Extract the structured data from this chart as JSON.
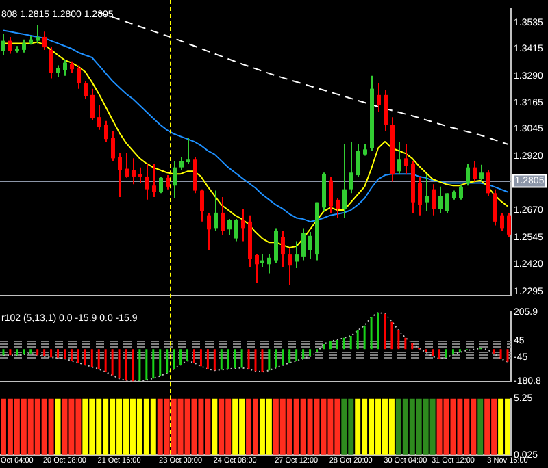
{
  "chart_data": [
    {
      "type": "candlestick",
      "title": "808 1.2815 1.2800 1.2805",
      "categories": [
        null,
        null,
        null,
        null,
        null,
        null,
        null,
        null,
        null,
        null,
        null,
        null,
        null,
        null,
        null,
        null,
        null,
        null,
        null,
        null,
        null,
        null,
        null,
        null,
        null,
        null,
        null,
        null,
        null,
        null,
        null,
        null,
        null,
        null,
        null,
        null,
        null,
        null,
        null,
        null,
        null,
        null,
        null,
        null,
        null,
        null,
        null,
        null,
        null,
        null,
        null,
        null,
        null,
        null,
        null,
        null,
        null,
        null,
        null,
        null,
        null,
        null,
        null,
        null,
        null,
        null,
        null,
        null,
        null,
        null,
        null,
        null,
        null,
        null,
        null
      ],
      "ohlc": [
        [
          1.3404,
          1.3482,
          1.3386,
          1.3452
        ],
        [
          1.3452,
          1.347,
          1.3392,
          1.3404
        ],
        [
          1.3404,
          1.3428,
          1.3398,
          1.3416
        ],
        [
          1.341,
          1.3458,
          1.3398,
          1.344
        ],
        [
          1.344,
          1.3476,
          1.3434,
          1.3458
        ],
        [
          1.3452,
          1.3524,
          1.344,
          1.347
        ],
        [
          1.347,
          1.3494,
          1.341,
          1.3422
        ],
        [
          1.341,
          1.3422,
          1.3279,
          1.3303
        ],
        [
          1.3303,
          1.3339,
          1.3285,
          1.3327
        ],
        [
          1.3315,
          1.3363,
          1.3291,
          1.3351
        ],
        [
          1.3345,
          1.3357,
          1.3303,
          1.3321
        ],
        [
          1.3327,
          1.3339,
          1.3231,
          1.3255
        ],
        [
          1.3255,
          1.3267,
          1.3184,
          1.3196
        ],
        [
          1.3202,
          1.3231,
          1.3088,
          1.3094
        ],
        [
          1.31,
          1.3154,
          1.3041,
          1.3053
        ],
        [
          1.3065,
          1.3082,
          1.2987,
          1.2999
        ],
        [
          1.3005,
          1.3035,
          1.2898,
          1.291
        ],
        [
          1.2916,
          1.2933,
          1.2731,
          1.2856
        ],
        [
          1.2862,
          1.2933,
          1.282,
          1.2826
        ],
        [
          1.2856,
          1.291,
          1.279,
          1.2826
        ],
        [
          1.2838,
          1.2868,
          1.2796,
          1.2826
        ],
        [
          1.2826,
          1.2886,
          1.2719,
          1.2767
        ],
        [
          1.2784,
          1.2886,
          1.2731,
          1.2755
        ],
        [
          1.2755,
          1.2826,
          1.2749,
          1.282
        ],
        [
          1.282,
          1.2832,
          1.2767,
          1.2779
        ],
        [
          1.2784,
          1.2898,
          1.2725,
          1.2868
        ],
        [
          1.2868,
          1.2916,
          1.2856,
          1.2898
        ],
        [
          1.2892,
          1.3005,
          1.2886,
          1.2904
        ],
        [
          1.2904,
          1.2916,
          1.2749,
          1.2761
        ],
        [
          1.2761,
          1.2767,
          1.2618,
          1.2665
        ],
        [
          1.2647,
          1.2659,
          1.2486,
          1.2582
        ],
        [
          1.2588,
          1.2761,
          1.2576,
          1.2659
        ],
        [
          1.2659,
          1.2731,
          1.2558,
          1.2576
        ],
        [
          1.2582,
          1.263,
          1.2558,
          1.2624
        ],
        [
          1.254,
          1.263,
          1.2528,
          1.2624
        ],
        [
          1.2624,
          1.2677,
          1.2528,
          1.2588
        ],
        [
          1.2618,
          1.2647,
          1.2409,
          1.2445
        ],
        [
          1.2463,
          1.2469,
          1.2337,
          1.2421
        ],
        [
          1.2427,
          1.2469,
          1.2409,
          1.2439
        ],
        [
          1.2421,
          1.2469,
          1.2379,
          1.2451
        ],
        [
          1.2439,
          1.2588,
          1.2427,
          1.2576
        ],
        [
          1.2546,
          1.2576,
          1.2409,
          1.2469
        ],
        [
          1.2469,
          1.2498,
          1.2326,
          1.2415
        ],
        [
          1.2433,
          1.2528,
          1.2403,
          1.2469
        ],
        [
          1.2457,
          1.2588,
          1.2439,
          1.2564
        ],
        [
          1.2486,
          1.257,
          1.2445,
          1.2552
        ],
        [
          1.2469,
          1.2707,
          1.2439,
          1.2707
        ],
        [
          1.2683,
          1.2844,
          1.2665,
          1.2838
        ],
        [
          1.2808,
          1.2826,
          1.2659,
          1.2689
        ],
        [
          1.2719,
          1.2725,
          1.2635,
          1.2677
        ],
        [
          1.2677,
          1.2975,
          1.2635,
          1.2767
        ],
        [
          1.2767,
          1.2987,
          1.2749,
          1.2844
        ],
        [
          1.2832,
          1.2975,
          1.2826,
          1.2945
        ],
        [
          1.2928,
          1.2975,
          1.2922,
          1.2951
        ],
        [
          1.2957,
          1.3291,
          1.2945,
          1.3231
        ],
        [
          1.3202,
          1.3255,
          1.3124,
          1.3154
        ],
        [
          1.3202,
          1.3226,
          1.3035,
          1.3065
        ],
        [
          1.3065,
          1.31,
          1.2802,
          1.2838
        ],
        [
          1.285,
          1.2987,
          1.2838,
          1.2904
        ],
        [
          1.291,
          1.2975,
          1.2838,
          1.2874
        ],
        [
          1.2886,
          1.2898,
          1.2659,
          1.2707
        ],
        [
          1.2796,
          1.2826,
          1.2647,
          1.2695
        ],
        [
          1.2707,
          1.2838,
          1.2665,
          1.2737
        ],
        [
          1.2767,
          1.279,
          1.2647,
          1.2677
        ],
        [
          1.2677,
          1.2779,
          1.2659,
          1.2737
        ],
        [
          1.2665,
          1.2749,
          1.2659,
          1.2749
        ],
        [
          1.2725,
          1.2761,
          1.2719,
          1.2755
        ],
        [
          1.2725,
          1.2784,
          1.2719,
          1.2779
        ],
        [
          1.2796,
          1.2886,
          1.2784,
          1.2868
        ],
        [
          1.2868,
          1.2898,
          1.2802,
          1.2814
        ],
        [
          1.2814,
          1.288,
          1.2802,
          1.2844
        ],
        [
          1.2844,
          1.2856,
          1.2737,
          1.2749
        ],
        [
          1.2749,
          1.2767,
          1.26,
          1.2618
        ],
        [
          1.2647,
          1.2659,
          1.2576,
          1.2588
        ],
        [
          1.2647,
          1.2659,
          1.2546,
          1.2558
        ]
      ],
      "colors": [
        "#32cd32",
        "#ff0000",
        "#32cd32",
        "#32cd32",
        "#32cd32",
        "#32cd32",
        "#ff0000",
        "#ff0000",
        "#32cd32",
        "#32cd32",
        "#ff0000",
        "#ff0000",
        "#ff0000",
        "#ff0000",
        "#ff0000",
        "#ff0000",
        "#ff0000",
        "#ff0000",
        "#ff0000",
        "#ff0000",
        "#ff0000",
        "#ff0000",
        "#ff0000",
        "#32cd32",
        "#ff0000",
        "#32cd32",
        "#32cd32",
        "#32cd32",
        "#ff0000",
        "#ff0000",
        "#ff0000",
        "#32cd32",
        "#ff0000",
        "#32cd32",
        "#32cd32",
        "#ff0000",
        "#ff0000",
        "#ff0000",
        "#32cd32",
        "#32cd32",
        "#32cd32",
        "#ff0000",
        "#ff0000",
        "#32cd32",
        "#32cd32",
        "#32cd32",
        "#32cd32",
        "#32cd32",
        "#ff0000",
        "#ff0000",
        "#32cd32",
        "#32cd32",
        "#32cd32",
        "#32cd32",
        "#32cd32",
        "#ff0000",
        "#ff0000",
        "#ff0000",
        "#32cd32",
        "#ff0000",
        "#ff0000",
        "#ff0000",
        "#32cd32",
        "#ff0000",
        "#32cd32",
        "#32cd32",
        "#32cd32",
        "#32cd32",
        "#32cd32",
        "#ff0000",
        "#32cd32",
        "#ff0000",
        "#ff0000",
        "#ff0000",
        "#ff0000"
      ],
      "series": [
        {
          "type": "line",
          "color": "#ffff00",
          "values": [
            1.344,
            1.344,
            1.344,
            1.344,
            1.344,
            1.3446,
            1.3434,
            1.341,
            1.3386,
            1.3363,
            1.3351,
            1.3333,
            1.3309,
            1.3261,
            1.3208,
            1.3148,
            1.3088,
            1.3029,
            1.2981,
            1.2945,
            1.291,
            1.2886,
            1.2868,
            1.2856,
            1.2844,
            1.2838,
            1.2838,
            1.285,
            1.285,
            1.2826,
            1.2779,
            1.2737,
            1.2695,
            1.2671,
            1.2647,
            1.263,
            1.2606,
            1.257,
            1.254,
            1.2522,
            1.2522,
            1.251,
            1.2498,
            1.2504,
            1.254,
            1.2582,
            1.2624,
            1.2665,
            1.2683,
            1.2671,
            1.2671,
            1.2707,
            1.2743,
            1.2779,
            1.2862,
            1.2957,
            1.2987,
            1.2957,
            1.2945,
            1.2933,
            1.291,
            1.2874,
            1.2844,
            1.2814,
            1.2802,
            1.279,
            1.2784,
            1.2784,
            1.2796,
            1.2802,
            1.2808,
            1.2784,
            1.2743,
            1.2713,
            1.2689
          ]
        },
        {
          "type": "line",
          "color": "#1e90ff",
          "values": [
            1.35,
            1.3494,
            1.3488,
            1.3482,
            1.3476,
            1.347,
            1.3464,
            1.3452,
            1.344,
            1.3428,
            1.3416,
            1.3398,
            1.3386,
            1.3375,
            1.3339,
            1.3303,
            1.3267,
            1.3237,
            1.3208,
            1.3184,
            1.3154,
            1.3124,
            1.3094,
            1.3065,
            1.3041,
            1.3023,
            1.3011,
            1.2999,
            1.2987,
            1.2969,
            1.2945,
            1.2928,
            1.2898,
            1.2868,
            1.2844,
            1.282,
            1.2796,
            1.2773,
            1.2743,
            1.2719,
            1.2695,
            1.2677,
            1.2653,
            1.2635,
            1.263,
            1.2618,
            1.2624,
            1.2635,
            1.2647,
            1.2653,
            1.2659,
            1.2671,
            1.2695,
            1.2725,
            1.2773,
            1.2814,
            1.2832,
            1.2838,
            1.2838,
            1.2838,
            1.2838,
            1.2826,
            1.282,
            1.2808,
            1.2802,
            1.2796,
            1.2796,
            1.2796,
            1.2796,
            1.2796,
            1.2796,
            1.279,
            1.2779,
            1.2767,
            1.2755
          ]
        },
        {
          "type": "line",
          "color": "#ffffff",
          "line_style": "dashed",
          "values": [
            null,
            null,
            null,
            null,
            null,
            null,
            null,
            null,
            null,
            null,
            null,
            null,
            null,
            null,
            1.3583,
            null,
            null,
            null,
            null,
            null,
            1.3518,
            null,
            null,
            null,
            null,
            1.3464,
            null,
            null,
            null,
            null,
            1.3404,
            null,
            null,
            null,
            null,
            1.3345,
            null,
            null,
            null,
            null,
            1.3291,
            null,
            null,
            null,
            null,
            null,
            null,
            null,
            null,
            null,
            1.3196,
            null,
            null,
            null,
            null,
            1.3148,
            null,
            null,
            null,
            null,
            1.3106,
            null,
            null,
            null,
            null,
            1.3059,
            null,
            null,
            null,
            null,
            1.3017,
            null,
            null,
            null,
            1.2975
          ]
        }
      ],
      "ylim": [
        1.2278,
        1.3601
      ],
      "yticks": [
        1.2295,
        {
          "value": 1.242,
          "label": "1.2420"
        },
        1.2545,
        {
          "value": 1.267,
          "label": "1.2670"
        },
        {
          "value": 1.292,
          "label": "1.2920"
        },
        1.3045,
        1.3165,
        {
          "value": 1.329,
          "label": "1.3290"
        },
        1.3415,
        1.3535
      ],
      "ref_lines": [
        {
          "axis": "y",
          "value": 1.2805,
          "label": "1.2805",
          "color": "#8c96a8"
        }
      ],
      "tick_labels": "y"
    },
    {
      "type": "bar",
      "title": "r102 (5,13,1) 0.0 -15.9 0.0 -15.9",
      "categories": [
        null,
        null,
        null,
        null,
        null,
        null,
        null,
        null,
        null,
        null,
        null,
        null,
        null,
        null,
        null,
        null,
        null,
        null,
        null,
        null,
        null,
        null,
        null,
        null,
        null,
        null,
        null,
        null,
        null,
        null,
        null,
        null,
        null,
        null,
        null,
        null,
        null,
        null,
        null,
        null,
        null,
        null,
        null,
        null,
        null,
        null,
        null,
        null,
        null,
        null,
        null,
        null,
        null,
        null,
        null,
        null,
        null,
        null,
        null,
        null,
        null,
        null,
        null,
        null,
        null,
        null,
        null,
        null,
        null,
        null,
        null,
        null,
        null,
        null,
        null
      ],
      "series": [
        {
          "type": "bar",
          "colors": [
            "#19d219",
            "#ff0000",
            "#19d219",
            "#19d219",
            "#19d219",
            "#ff0000",
            "#ff0000",
            "#ff0000",
            "#ff0000",
            "#ff0000",
            "#ff0000",
            "#ff0000",
            "#ff0000",
            "#ff0000",
            "#ff0000",
            "#ff0000",
            "#ff0000",
            "#ff0000",
            "#ff0000",
            "#ff0000",
            "#19d219",
            "#19d219",
            "#19d219",
            "#19d219",
            "#19d219",
            "#19d219",
            "#19d219",
            "#19d219",
            "#ff0000",
            "#ff0000",
            "#ff0000",
            "#ff0000",
            "#19d219",
            "#19d219",
            "#19d219",
            "#19d219",
            "#ff0000",
            "#ff0000",
            "#ff0000",
            "#19d219",
            "#19d219",
            "#19d219",
            "#19d219",
            "#19d219",
            "#19d219",
            "#19d219",
            "#19d219",
            "#19d219",
            "#19d219",
            "#19d219",
            "#19d219",
            "#19d219",
            "#19d219",
            "#19d219",
            "#19d219",
            "#19d219",
            "#ff0000",
            "#ff0000",
            "#ff0000",
            "#ff0000",
            "#ff0000",
            "#ff0000",
            "#ff0000",
            "#ff0000",
            "#ff0000",
            "#19d219",
            "#19d219",
            "#19d219",
            "#19d219",
            "#19d219",
            "#19d219",
            "#ff0000",
            "#ff0000",
            "#ff0000",
            "#ff0000"
          ],
          "values": [
            -34,
            -34,
            -34,
            -30,
            -25,
            -34,
            -41,
            -46,
            -48,
            -53,
            -65,
            -76,
            -88,
            -99,
            -111,
            -127,
            -146,
            -164,
            -176,
            -180.8,
            -178,
            -173,
            -164,
            -150,
            -134,
            -111,
            -88,
            -65,
            -76,
            -95,
            -111,
            -118,
            -115,
            -111,
            -106,
            -104,
            -111,
            -122,
            -127,
            -118,
            -104,
            -90,
            -76,
            -65,
            -53,
            -41,
            -18,
            28,
            44,
            51,
            63,
            74,
            104,
            132,
            178,
            205.9,
            197,
            155,
            104,
            63,
            35,
            5,
            -18,
            -41,
            -53,
            -48,
            -30,
            -18,
            -7,
            null,
            5,
            null,
            -25,
            -53,
            -71
          ]
        },
        {
          "type": "line",
          "color": "#c0c0c0",
          "line_style": "dotted",
          "values": [
            -34,
            -34,
            -34,
            -30,
            -25,
            -34,
            -41,
            -46,
            -48,
            -53,
            -65,
            -76,
            -88,
            -99,
            -111,
            -127,
            -146,
            -164,
            -176,
            -180.8,
            -178,
            -173,
            -164,
            -150,
            -134,
            -111,
            -88,
            -65,
            -76,
            -95,
            -111,
            -118,
            -115,
            -111,
            -106,
            -104,
            -111,
            -122,
            -127,
            -118,
            -104,
            -90,
            -76,
            -65,
            -53,
            -41,
            -18,
            28,
            44,
            51,
            63,
            74,
            104,
            132,
            178,
            205.9,
            197,
            155,
            104,
            63,
            35,
            5,
            -18,
            -41,
            -53,
            -48,
            -30,
            -18,
            -7,
            -2,
            5,
            -2,
            -25,
            -53,
            -71
          ]
        }
      ],
      "ylim": [
        -180.8,
        205.9
      ],
      "yticks": [
        205.9,
        45,
        -45,
        -180.8
      ],
      "ref_lines": [
        {
          "axis": "y",
          "value": 45,
          "color": "#808080",
          "line_style": "dashed"
        },
        {
          "axis": "y",
          "value": 30,
          "color": "#808080",
          "line_style": "dashed"
        },
        {
          "axis": "y",
          "value": 15,
          "color": "#808080",
          "line_style": "dashed"
        },
        {
          "axis": "y",
          "value": -15,
          "color": "#808080",
          "line_style": "dashed"
        },
        {
          "axis": "y",
          "value": -30,
          "color": "#808080",
          "line_style": "dashed"
        },
        {
          "axis": "y",
          "value": -45,
          "color": "#808080",
          "line_style": "dashed"
        }
      ],
      "tick_labels": "y"
    },
    {
      "type": "bar",
      "categories": [
        null,
        null,
        "Oct 04:00",
        null,
        null,
        null,
        null,
        null,
        null,
        "20 Oct 08:00",
        null,
        null,
        null,
        null,
        null,
        null,
        null,
        "21 Oct 16:00",
        null,
        null,
        null,
        null,
        null,
        null,
        null,
        null,
        "23 Oct 00:00",
        null,
        null,
        null,
        null,
        null,
        null,
        null,
        "24 Oct 08:00",
        null,
        null,
        null,
        null,
        null,
        null,
        null,
        null,
        "27 Oct 12:00",
        null,
        null,
        null,
        null,
        null,
        null,
        null,
        "28 Oct 20:00",
        null,
        null,
        null,
        null,
        null,
        null,
        null,
        "30 Oct 04:00",
        null,
        null,
        null,
        null,
        null,
        null,
        "31 Oct 12:00",
        null,
        null,
        null,
        null,
        null,
        null,
        null,
        "3 Nov 16:00"
      ],
      "values": [
        5.25,
        5.25,
        5.25,
        5.25,
        5.25,
        5.25,
        5.25,
        5.25,
        5.25,
        5.25,
        5.25,
        5.25,
        5.25,
        5.25,
        5.25,
        5.25,
        5.25,
        5.25,
        5.25,
        5.25,
        5.25,
        5.25,
        5.25,
        5.25,
        5.25,
        5.25,
        5.25,
        5.25,
        5.25,
        5.25,
        5.25,
        5.25,
        5.25,
        5.25,
        5.25,
        5.25,
        5.25,
        5.25,
        5.25,
        5.25,
        5.25,
        5.25,
        5.25,
        5.25,
        5.25,
        5.25,
        5.25,
        5.25,
        5.25,
        5.25,
        5.25,
        5.25,
        5.25,
        5.25,
        5.25,
        5.25,
        5.25,
        5.25,
        5.25,
        5.25,
        5.25,
        5.25,
        5.25,
        5.25,
        5.25,
        5.25,
        5.25,
        5.25,
        5.25,
        5.25,
        5.25,
        5.25,
        5.25,
        5.25,
        5.25
      ],
      "colors": [
        "#ff2d1e",
        "#ff2d1e",
        "#ff2d1e",
        "#ff2d1e",
        "#ff2d1e",
        "#ff2d1e",
        "#ff2d1e",
        "#ff2d1e",
        "#ffff00",
        "#ff2d1e",
        "#ff2d1e",
        "#ff2d1e",
        "#ffff00",
        "#ffff00",
        "#ffff00",
        "#ffff00",
        "#ffff00",
        "#ffff00",
        "#ffff00",
        "#ffff00",
        "#ffff00",
        "#ffff00",
        "#ffff00",
        "#ff2d1e",
        "#ff2d1e",
        "#ff2d1e",
        "#ff2d1e",
        "#ff2d1e",
        "#ff2d1e",
        "#ff2d1e",
        "#ff2d1e",
        "#ffff00",
        "#ff2d1e",
        "#ff2d1e",
        "#ffff00",
        "#ffff00",
        "#ff2d1e",
        "#ff2d1e",
        "#ffff00",
        "#ffff00",
        "#ff2d1e",
        "#ff2d1e",
        "#ff2d1e",
        "#ff2d1e",
        "#ff2d1e",
        "#ff2d1e",
        "#ff2d1e",
        "#ff2d1e",
        "#ff2d1e",
        "#ff2d1e",
        "#2e8b1e",
        "#2e8b1e",
        "#ffff00",
        "#ffff00",
        "#ffff00",
        "#ffff00",
        "#ffff00",
        "#ffff00",
        "#2e8b1e",
        "#2e8b1e",
        "#2e8b1e",
        "#2e8b1e",
        "#2e8b1e",
        "#2e8b1e",
        "#ff2d1e",
        "#ff2d1e",
        "#ff2d1e",
        "#ff2d1e",
        "#ff2d1e",
        "#ff2d1e",
        "#2e8b1e",
        "#ff2d1e",
        "#ff2d1e",
        "#ffff00",
        "#ffff00"
      ],
      "ylim": [
        0.025,
        5.25
      ],
      "yticks": [
        5.25,
        0.025
      ]
    }
  ]
}
